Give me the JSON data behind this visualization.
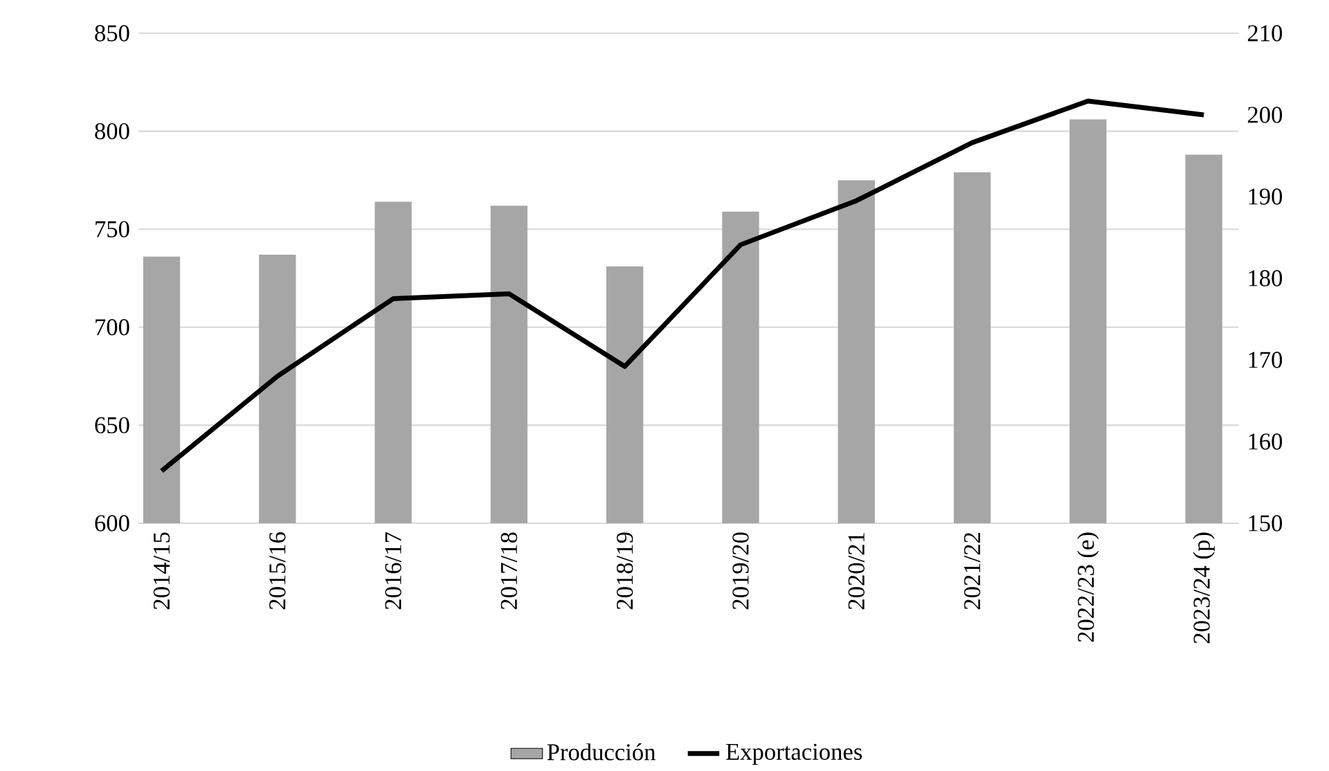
{
  "chart_data": {
    "type": "bar",
    "categories": [
      "2014/15",
      "2015/16",
      "2016/17",
      "2017/18",
      "2018/19",
      "2019/20",
      "2020/21",
      "2021/22",
      "2022/23 (e)",
      "2023/24 (p)"
    ],
    "series": [
      {
        "name": "Producción",
        "color": "#a6a6a6",
        "values": [
          736,
          737,
          764,
          762,
          731,
          759,
          775,
          779,
          806,
          788
        ]
      },
      {
        "name": "Exportaciones",
        "type": "line",
        "axis": "y2",
        "color": "#000000",
        "values": [
          156.4,
          168.0,
          177.5,
          178.1,
          169.2,
          184.1,
          189.5,
          196.6,
          201.7,
          200.0
        ]
      }
    ],
    "ylim": [
      600,
      850
    ],
    "yticks": [
      600,
      650,
      700,
      750,
      800,
      850
    ],
    "y2lim": [
      150,
      210
    ],
    "y2ticks": [
      150,
      160,
      170,
      180,
      190,
      200,
      210
    ],
    "grid": "y",
    "legend": "bottom",
    "marker": "none",
    "line_style": "solid"
  }
}
